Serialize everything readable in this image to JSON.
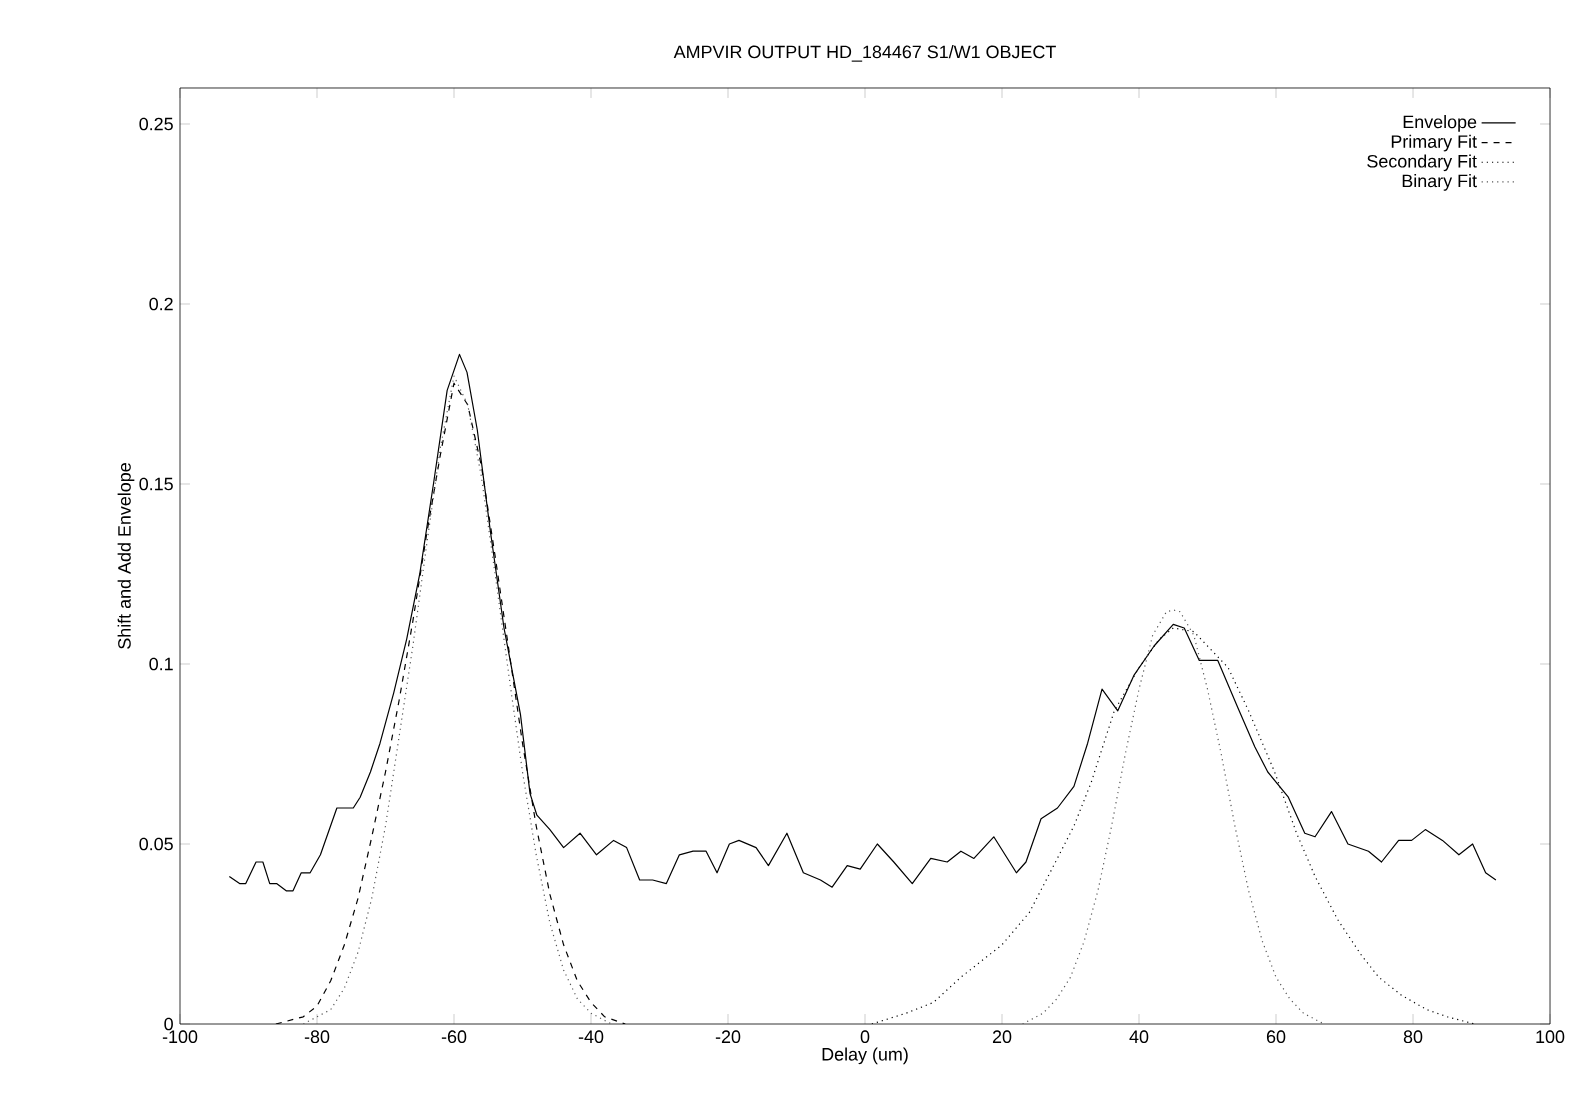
{
  "chart_data": {
    "type": "line",
    "title": "AMPVIR OUTPUT HD_184467 S1/W1 OBJECT",
    "xlabel": "Delay (um)",
    "ylabel": "Shift and Add Envelope",
    "xlim": [
      -100,
      100
    ],
    "ylim": [
      0,
      0.26
    ],
    "xticks": [
      -100,
      -80,
      -60,
      -40,
      -20,
      0,
      20,
      40,
      60,
      80,
      100
    ],
    "yticks": [
      0,
      0.05,
      0.1,
      0.15,
      0.2,
      0.25
    ],
    "legend": "top right",
    "series": [
      {
        "name": "Envelope",
        "color": "#000000",
        "line_style": "solid",
        "x": [
          -92.8,
          -91.3,
          -90.4,
          -88.9,
          -87.9,
          -86.9,
          -85.9,
          -84.5,
          -83.5,
          -82.3,
          -81,
          -79.5,
          -77.1,
          -74.7,
          -73.7,
          -72.2,
          -70.8,
          -68.8,
          -66.9,
          -65,
          -63,
          -61,
          -59.2,
          -58.1,
          -56.6,
          -54.7,
          -52.7,
          -50.3,
          -48.9,
          -47.9,
          -46,
          -44,
          -41.6,
          -39.2,
          -36.7,
          -34.8,
          -32.9,
          -31,
          -29,
          -27.1,
          -25.1,
          -23.2,
          -21.6,
          -19.8,
          -18.4,
          -15.9,
          -14.1,
          -11.4,
          -9,
          -6.5,
          -4.8,
          -2.6,
          -0.7,
          1.8,
          4.2,
          6.9,
          9.6,
          12,
          14,
          15.9,
          18.8,
          22.1,
          23.5,
          25.7,
          28.1,
          30.5,
          32.5,
          34.6,
          36.9,
          39.3,
          42.2,
          45,
          46.6,
          48.8,
          51.5,
          54.4,
          56.9,
          58.8,
          61.8,
          64.2,
          65.7,
          68.1,
          70.5,
          73.5,
          75.4,
          77.9,
          79.8,
          81.8,
          84.3,
          86.7,
          88.7,
          90.6,
          92.1
        ],
        "values": [
          0.041,
          0.039,
          0.039,
          0.045,
          0.045,
          0.039,
          0.039,
          0.037,
          0.037,
          0.042,
          0.042,
          0.047,
          0.06,
          0.06,
          0.063,
          0.07,
          0.078,
          0.092,
          0.107,
          0.125,
          0.15,
          0.176,
          0.186,
          0.181,
          0.165,
          0.137,
          0.11,
          0.086,
          0.064,
          0.058,
          0.054,
          0.049,
          0.053,
          0.047,
          0.051,
          0.049,
          0.04,
          0.04,
          0.039,
          0.047,
          0.048,
          0.048,
          0.042,
          0.05,
          0.051,
          0.049,
          0.044,
          0.053,
          0.042,
          0.04,
          0.038,
          0.044,
          0.043,
          0.05,
          0.045,
          0.039,
          0.046,
          0.045,
          0.048,
          0.046,
          0.052,
          0.042,
          0.045,
          0.057,
          0.06,
          0.066,
          0.078,
          0.093,
          0.087,
          0.097,
          0.105,
          0.111,
          0.11,
          0.101,
          0.101,
          0.088,
          0.077,
          0.07,
          0.063,
          0.053,
          0.052,
          0.059,
          0.05,
          0.048,
          0.045,
          0.051,
          0.051,
          0.054,
          0.051,
          0.047,
          0.05,
          0.042,
          0.04
        ]
      },
      {
        "name": "Primary Fit",
        "color": "#000000",
        "line_style": "dashed",
        "x": [
          -86,
          -82,
          -80,
          -78,
          -76,
          -74,
          -72,
          -70,
          -68,
          -66,
          -64,
          -62,
          -60,
          -58,
          -56,
          -54,
          -52,
          -50,
          -48,
          -46,
          -44,
          -42,
          -40,
          -38,
          -35
        ],
        "values": [
          0,
          0.002,
          0.005,
          0.012,
          0.022,
          0.035,
          0.052,
          0.07,
          0.09,
          0.112,
          0.136,
          0.158,
          0.178,
          0.172,
          0.155,
          0.13,
          0.104,
          0.078,
          0.055,
          0.036,
          0.022,
          0.012,
          0.006,
          0.002,
          0
        ]
      },
      {
        "name": "Secondary Fit",
        "color": "#000000",
        "line_style": "dotted",
        "x": [
          1,
          6,
          10,
          14,
          18,
          20,
          24,
          27,
          30.5,
          33,
          36.4,
          40,
          43,
          45,
          48,
          51,
          53,
          56,
          59.8,
          63,
          65.7,
          69,
          72.5,
          75,
          78.3,
          82,
          85,
          89
        ],
        "values": [
          0,
          0.003,
          0.006,
          0.013,
          0.019,
          0.022,
          0.031,
          0.042,
          0.055,
          0.067,
          0.087,
          0.099,
          0.107,
          0.11,
          0.109,
          0.103,
          0.099,
          0.087,
          0.07,
          0.053,
          0.041,
          0.029,
          0.019,
          0.013,
          0.008,
          0.004,
          0.002,
          0
        ]
      },
      {
        "name": "Binary Fit",
        "color": "#555555",
        "line_style": "dotted",
        "x": [
          -82,
          -78,
          -76,
          -74,
          -72,
          -70,
          -68,
          -66,
          -64,
          -62,
          -60,
          -58,
          -56,
          -54,
          -52,
          -50,
          -48,
          -46,
          -44,
          -42,
          -40,
          -37,
          -7,
          23,
          26,
          28,
          30,
          32,
          34,
          36,
          38,
          40,
          42,
          44,
          45,
          46,
          48,
          50,
          52,
          54,
          56,
          58,
          60,
          62,
          64,
          67
        ],
        "values": [
          0,
          0.004,
          0.01,
          0.02,
          0.035,
          0.055,
          0.08,
          0.105,
          0.133,
          0.16,
          0.18,
          0.172,
          0.152,
          0.125,
          0.097,
          0.07,
          0.047,
          0.028,
          0.015,
          0.007,
          0.003,
          0,
          null,
          0,
          0.003,
          0.007,
          0.013,
          0.023,
          0.037,
          0.055,
          0.075,
          0.093,
          0.108,
          0.1145,
          0.115,
          0.1145,
          0.108,
          0.093,
          0.075,
          0.055,
          0.037,
          0.023,
          0.013,
          0.007,
          0.003,
          0
        ]
      }
    ]
  }
}
